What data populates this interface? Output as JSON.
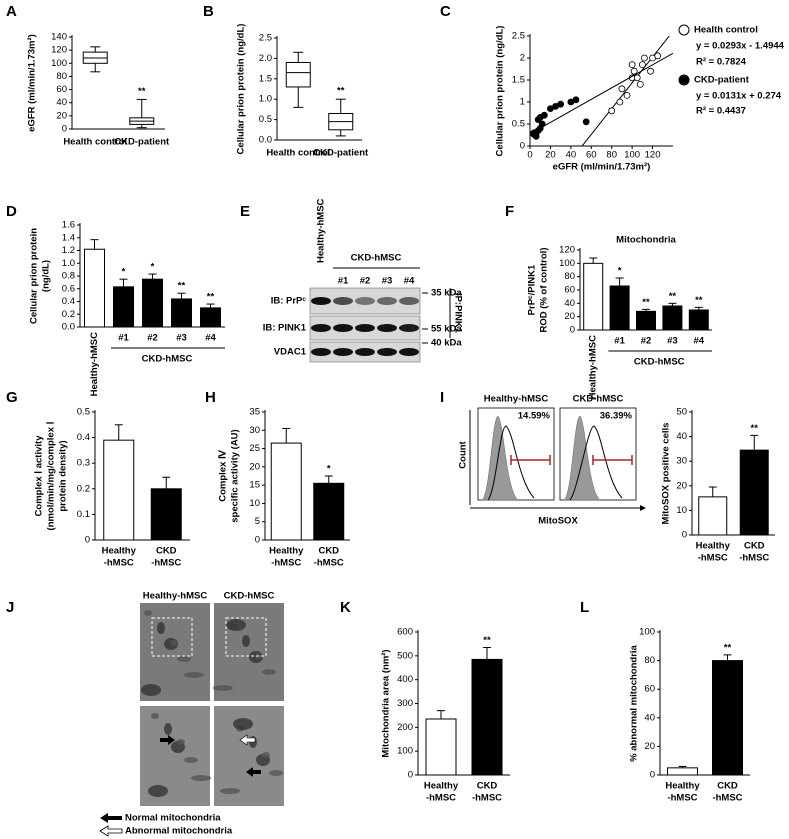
{
  "chart_data": [
    {
      "label": "A",
      "type": "box",
      "ylabel": [
        "eGFR (ml/min/1.73m²)"
      ],
      "categories": [
        "Health control",
        "CKD-patient"
      ],
      "boxes": [
        {
          "min": 87,
          "q1": 100,
          "median": 108,
          "q3": 117,
          "max": 125
        },
        {
          "min": 2,
          "q1": 7,
          "median": 12,
          "q3": 17,
          "max": 45
        }
      ],
      "significance": [
        null,
        "**"
      ],
      "ylim": [
        0,
        140
      ],
      "yticks": [
        0,
        20,
        40,
        60,
        80,
        100,
        120,
        140
      ]
    },
    {
      "label": "B",
      "type": "box",
      "ylabel": [
        "Cellular prion protein (ng/dL)"
      ],
      "categories": [
        "Health control",
        "CKD-patient"
      ],
      "boxes": [
        {
          "min": 0.8,
          "q1": 1.3,
          "median": 1.65,
          "q3": 1.9,
          "max": 2.15
        },
        {
          "min": 0.1,
          "q1": 0.25,
          "median": 0.45,
          "q3": 0.65,
          "max": 1.0
        }
      ],
      "significance": [
        null,
        "**"
      ],
      "ylim": [
        0,
        2.5
      ],
      "yticks": [
        {
          "value": 0,
          "label": "0.0"
        },
        0.5,
        {
          "value": 1,
          "label": "1.0"
        },
        1.5,
        {
          "value": 2,
          "label": "2.0"
        },
        2.5
      ]
    },
    {
      "label": "C",
      "type": "scatter",
      "ylabel": [
        "Cellular prion protein (ng/dL)"
      ],
      "xlabel": "eGFR (ml/min/1.73m²)",
      "xlim": [
        0,
        140
      ],
      "xticks": [
        0,
        20,
        40,
        60,
        80,
        100,
        120
      ],
      "ylim": [
        0,
        2.5
      ],
      "yticks": [
        0,
        0.5,
        1,
        1.5,
        2,
        2.5
      ],
      "series": [
        {
          "name": "Health control",
          "color": "#ffffff",
          "x": [
            80,
            88,
            90,
            95,
            100,
            100,
            102,
            105,
            108,
            110,
            112,
            118,
            120,
            125
          ],
          "y": [
            0.8,
            1.0,
            1.3,
            1.15,
            1.55,
            1.85,
            1.7,
            1.55,
            1.4,
            1.85,
            2.0,
            1.7,
            2.0,
            2.05
          ],
          "slope": 0.0293,
          "intercept": -1.4944,
          "equation": "y = 0.0293x - 1.4944",
          "r2": "R² = 0.7824"
        },
        {
          "name": "CKD-patient",
          "color": "#000000",
          "x": [
            3,
            4,
            5,
            6,
            6,
            8,
            8,
            10,
            10,
            12,
            14,
            20,
            25,
            30,
            40,
            45,
            55
          ],
          "y": [
            0.28,
            0.3,
            0.25,
            0.22,
            0.3,
            0.35,
            0.6,
            0.4,
            0.65,
            0.5,
            0.7,
            0.85,
            0.9,
            0.95,
            1.0,
            1.05,
            0.55
          ],
          "slope": 0.0131,
          "intercept": 0.274,
          "equation": "y = 0.0131x + 0.274",
          "r2": "R² = 0.4437"
        }
      ]
    },
    {
      "label": "D",
      "type": "bar",
      "ylabel": [
        "Cellular prion protein",
        "(ng/dL)"
      ],
      "categories": [
        "Healthy-hMSC",
        "#1",
        "#2",
        "#3",
        "#4"
      ],
      "group_label": "CKD-hMSC",
      "values": [
        1.22,
        0.63,
        0.75,
        0.44,
        0.3
      ],
      "errors": [
        0.15,
        0.12,
        0.08,
        0.09,
        0.06
      ],
      "colors": [
        "#ffffff",
        "#000000",
        "#000000",
        "#000000",
        "#000000"
      ],
      "significance": [
        null,
        "*",
        "*",
        "**",
        "**"
      ],
      "ylim": [
        0,
        1.6
      ],
      "yticks": [
        {
          "value": 0,
          "label": "0.0"
        },
        0.2,
        0.4,
        0.6,
        0.8,
        {
          "value": 1,
          "label": "1.0"
        },
        1.2,
        1.4,
        1.6
      ]
    },
    {
      "label": "F",
      "type": "bar",
      "title": "Mitochondria",
      "ylabel": [
        "PrPᶜ/PINK1",
        "ROD (% of control)"
      ],
      "categories": [
        "Healthy-hMSC",
        "#1",
        "#2",
        "#3",
        "#4"
      ],
      "group_label": "CKD-hMSC",
      "values": [
        100,
        66,
        28,
        36,
        30
      ],
      "errors": [
        8,
        12,
        3,
        4,
        4
      ],
      "colors": [
        "#ffffff",
        "#000000",
        "#000000",
        "#000000",
        "#000000"
      ],
      "significance": [
        null,
        "*",
        "**",
        "**",
        "**"
      ],
      "ylim": [
        0,
        120
      ],
      "yticks": [
        0,
        20,
        40,
        60,
        80,
        100,
        120
      ]
    },
    {
      "label": "G",
      "type": "bar",
      "ylabel": [
        "Complex Ⅰ activity",
        "(nmol/min/mg/complex Ⅰ",
        "protein density)"
      ],
      "categories": [
        [
          "Healthy",
          "-hMSC"
        ],
        [
          "CKD",
          "-hMSC"
        ]
      ],
      "values": [
        0.39,
        0.2
      ],
      "errors": [
        0.06,
        0.045
      ],
      "colors": [
        "#ffffff",
        "#000000"
      ],
      "ylim": [
        0,
        0.5
      ],
      "yticks": [
        0,
        0.1,
        0.2,
        0.3,
        0.4,
        0.5
      ]
    },
    {
      "label": "H",
      "type": "bar",
      "ylabel": [
        "Complex Ⅳ",
        "specific activity (AU)"
      ],
      "categories": [
        [
          "Healthy",
          "-hMSC"
        ],
        [
          "CKD",
          "-hMSC"
        ]
      ],
      "values": [
        26.5,
        15.5
      ],
      "errors": [
        4,
        2
      ],
      "colors": [
        "#ffffff",
        "#000000"
      ],
      "significance": [
        null,
        "*"
      ],
      "ylim": [
        0,
        35
      ],
      "yticks": [
        0,
        5,
        10,
        15,
        20,
        25,
        30,
        35
      ]
    },
    {
      "type": "bar",
      "ylabel": [
        "MitoSOX positive cells"
      ],
      "categories": [
        [
          "Healthy",
          "-hMSC"
        ],
        [
          "CKD",
          "-hMSC"
        ]
      ],
      "values": [
        15.5,
        34.5
      ],
      "errors": [
        4,
        6
      ],
      "colors": [
        "#ffffff",
        "#000000"
      ],
      "significance": [
        null,
        "**"
      ],
      "ylim": [
        0,
        50
      ],
      "yticks": [
        0,
        10,
        20,
        30,
        40,
        50
      ]
    },
    {
      "label": "K",
      "type": "bar",
      "ylabel": [
        "Mitochondria area (nm²)"
      ],
      "categories": [
        [
          "Healthy",
          "-hMSC"
        ],
        [
          "CKD",
          "-hMSC"
        ]
      ],
      "values": [
        235,
        485
      ],
      "errors": [
        35,
        50
      ],
      "colors": [
        "#ffffff",
        "#000000"
      ],
      "significance": [
        null,
        "**"
      ],
      "ylim": [
        0,
        600
      ],
      "yticks": [
        0,
        100,
        200,
        300,
        400,
        500,
        600
      ]
    },
    {
      "label": "L",
      "type": "bar",
      "ylabel": [
        "% abnormal mitochondria"
      ],
      "categories": [
        [
          "Healthy",
          "-hMSC"
        ],
        [
          "CKD",
          "-hMSC"
        ]
      ],
      "values": [
        5,
        80
      ],
      "errors": [
        1,
        4
      ],
      "colors": [
        "#ffffff",
        "#000000"
      ],
      "significance": [
        null,
        "**"
      ],
      "ylim": [
        0,
        100
      ],
      "yticks": [
        0,
        20,
        40,
        60,
        80,
        100
      ]
    }
  ],
  "blot": {
    "label": "E",
    "lanes": [
      "Healthy-hMSC",
      "#1",
      "#2",
      "#3",
      "#4"
    ],
    "group_label": "CKD-hMSC",
    "rows": [
      {
        "name": "IB: PrPᶜ",
        "marker": "35 kDa"
      },
      {
        "name": "IB: PINK1",
        "marker": "55 kDa"
      },
      {
        "name": "VDAC1",
        "marker": "40 kDa"
      }
    ],
    "side_label": "IP:PINK1"
  },
  "flow": {
    "label": "I",
    "panels": [
      {
        "title": "Healthy-hMSC",
        "percent": "14.59%"
      },
      {
        "title": "CKD-hMSC",
        "percent": "36.39%"
      }
    ],
    "ylabel": "Count",
    "xlabel": "MitoSOX"
  },
  "micrographs": {
    "label": "J",
    "columns": [
      "Healthy-hMSC",
      "CKD-hMSC"
    ],
    "legend": [
      "Normal mitochondria",
      "Abnormal mitochondria"
    ]
  }
}
